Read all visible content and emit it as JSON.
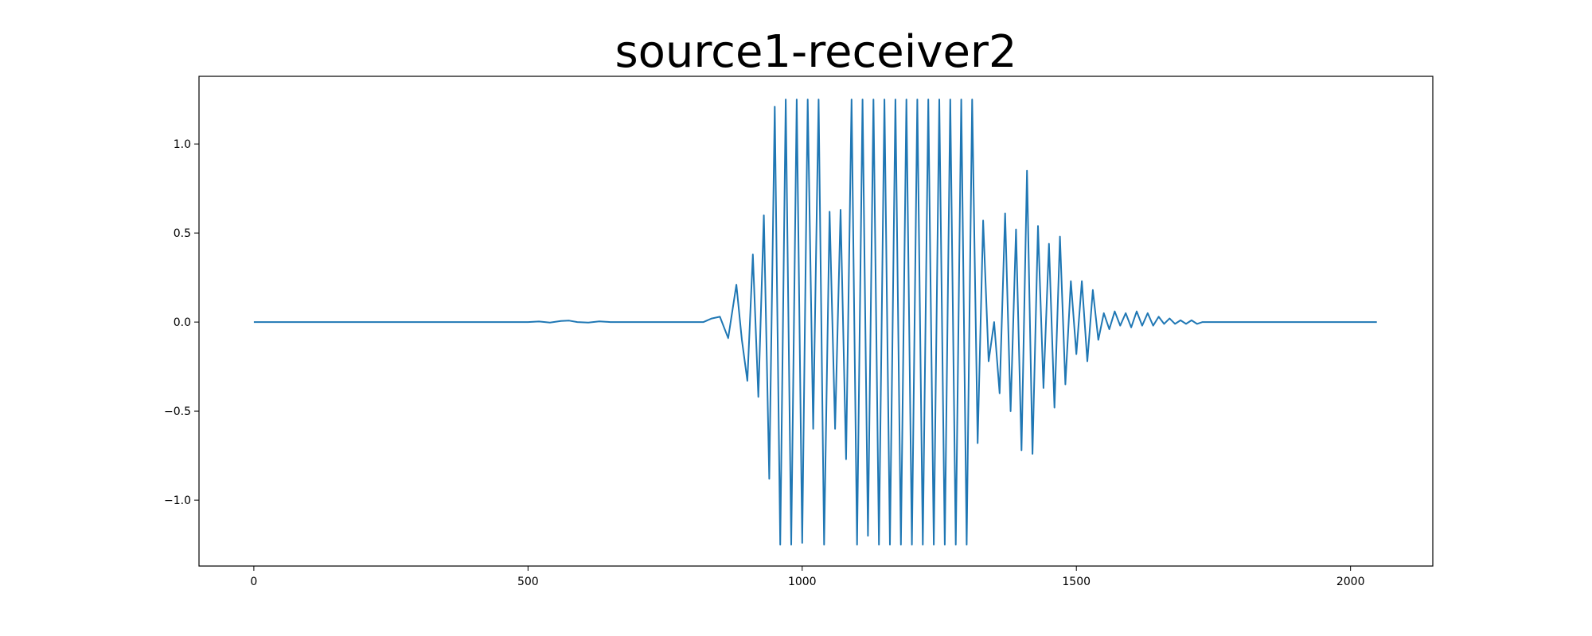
{
  "chart_data": {
    "type": "line",
    "title": "source1-receiver2",
    "xlabel": "",
    "ylabel": "",
    "xlim": [
      -100,
      2150
    ],
    "ylim": [
      -1.37,
      1.38
    ],
    "xticks": [
      0,
      500,
      1000,
      1500,
      2000
    ],
    "xtick_labels": [
      "0",
      "500",
      "1000",
      "1500",
      "2000"
    ],
    "yticks": [
      -1.0,
      -0.5,
      0.0,
      0.5,
      1.0
    ],
    "ytick_labels": [
      "−1.0",
      "−0.5",
      "0.0",
      "0.5",
      "1.0"
    ],
    "grid": false,
    "legend": "none",
    "line_color": "#1f77b4",
    "series": [
      {
        "x": [
          0,
          50,
          100,
          150,
          200,
          250,
          300,
          350,
          400,
          450,
          500,
          520,
          540,
          560,
          575,
          590,
          610,
          630,
          650,
          700,
          750,
          800,
          820,
          835,
          850,
          865,
          880,
          890,
          900,
          910,
          920,
          930,
          940,
          950,
          960,
          970,
          980,
          990,
          1000,
          1010,
          1020,
          1030,
          1040,
          1050,
          1060,
          1070,
          1080,
          1090,
          1100,
          1110,
          1120,
          1130,
          1140,
          1150,
          1160,
          1170,
          1180,
          1190,
          1200,
          1210,
          1220,
          1230,
          1240,
          1250,
          1260,
          1270,
          1280,
          1290,
          1300,
          1310,
          1320,
          1330,
          1340,
          1350,
          1360,
          1370,
          1380,
          1390,
          1400,
          1410,
          1420,
          1430,
          1440,
          1450,
          1460,
          1470,
          1480,
          1490,
          1500,
          1510,
          1520,
          1530,
          1540,
          1550,
          1560,
          1570,
          1580,
          1590,
          1600,
          1610,
          1620,
          1630,
          1640,
          1650,
          1660,
          1670,
          1680,
          1690,
          1700,
          1710,
          1720,
          1730,
          1740,
          1750,
          1760,
          1770,
          1780,
          1790,
          1800,
          1810,
          1820,
          1830,
          1840,
          1850,
          1860,
          1870,
          1880,
          1890,
          1900,
          1910,
          1920,
          1930,
          1940,
          1950,
          1960,
          1970,
          1980,
          1990,
          2000,
          2010,
          2020,
          2030,
          2040,
          2048
        ],
        "y": [
          0.0,
          0.0,
          0.0,
          0.0,
          0.0,
          0.0,
          0.0,
          0.0,
          0.0,
          0.0,
          0.0,
          0.003,
          -0.003,
          0.006,
          0.008,
          0.0,
          -0.003,
          0.004,
          0.0,
          0.0,
          0.0,
          0.0,
          0.0,
          0.02,
          0.03,
          -0.09,
          0.21,
          -0.1,
          -0.33,
          0.38,
          -0.42,
          0.6,
          -0.88,
          1.21,
          -1.25,
          1.25,
          -1.25,
          1.25,
          -1.24,
          1.25,
          -0.6,
          1.25,
          -1.25,
          0.62,
          -0.6,
          0.63,
          -0.77,
          1.25,
          -1.25,
          1.25,
          -1.2,
          1.25,
          -1.25,
          1.25,
          -1.25,
          1.25,
          -1.25,
          1.25,
          -1.25,
          1.25,
          -1.25,
          1.25,
          -1.25,
          1.25,
          -1.25,
          1.25,
          -1.25,
          1.25,
          -1.25,
          1.25,
          -0.68,
          0.57,
          -0.22,
          0.0,
          -0.4,
          0.61,
          -0.5,
          0.52,
          -0.72,
          0.85,
          -0.74,
          0.54,
          -0.37,
          0.44,
          -0.48,
          0.48,
          -0.35,
          0.23,
          -0.18,
          0.23,
          -0.22,
          0.18,
          -0.1,
          0.05,
          -0.04,
          0.06,
          -0.02,
          0.05,
          -0.03,
          0.06,
          -0.02,
          0.05,
          -0.02,
          0.03,
          -0.01,
          0.02,
          -0.01,
          0.01,
          -0.01,
          0.01,
          -0.01,
          0.0,
          0.0,
          0.0,
          0.0,
          0.0,
          0.0,
          0.0,
          0.0,
          0.0,
          0.0,
          0.0,
          0.0,
          0.0,
          0.0,
          0.0,
          0.0,
          0.0,
          0.0,
          0.0,
          0.0,
          0.0,
          0.0,
          0.0,
          0.0,
          0.0,
          0.0,
          0.0,
          0.0,
          0.0,
          0.0,
          0.0,
          0.0,
          0.0
        ]
      }
    ]
  }
}
